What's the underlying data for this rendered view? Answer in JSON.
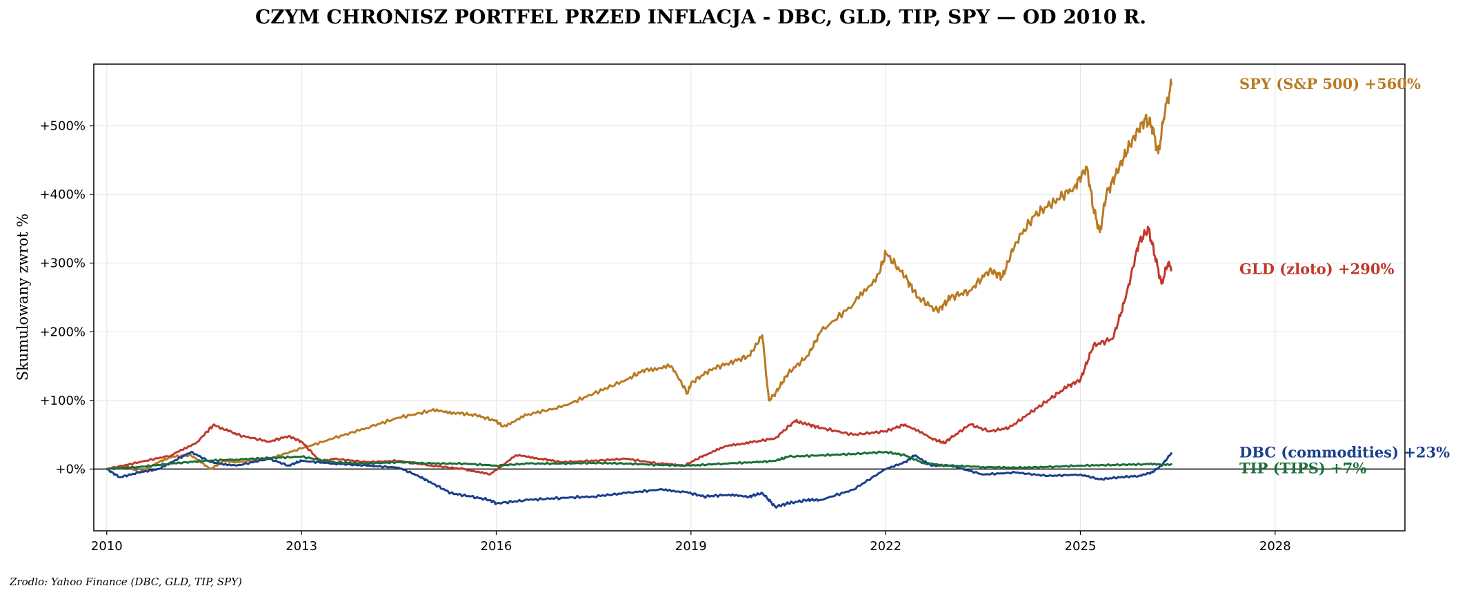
{
  "chart_data": {
    "type": "line",
    "title": "CZYM CHRONISZ PORTFEL PRZED INFLACJA - DBC, GLD, TIP, SPY — OD 2010 R.",
    "ylabel": "Skumulowany zwrot %",
    "xlabel": "",
    "xlim": [
      2009.8,
      2030.0
    ],
    "ylim": [
      -90,
      590
    ],
    "grid": true,
    "x_ticks": [
      2010,
      2013,
      2016,
      2019,
      2022,
      2025,
      2028
    ],
    "x_tick_labels": [
      "2010",
      "2013",
      "2016",
      "2019",
      "2022",
      "2025",
      "2028"
    ],
    "y_ticks": [
      0,
      100,
      200,
      300,
      400,
      500
    ],
    "y_tick_labels": [
      "+0%",
      "+100%",
      "+200%",
      "+300%",
      "+400%",
      "+500%"
    ],
    "series": [
      {
        "name": "SPY (S&P 500)",
        "end_label": "SPY (S&P 500)  +560%",
        "color": "#b87a22",
        "x": [
          2010.0,
          2010.3,
          2010.5,
          2010.8,
          2011.0,
          2011.3,
          2011.6,
          2011.8,
          2012.0,
          2012.5,
          2013.0,
          2013.5,
          2014.0,
          2014.5,
          2015.0,
          2015.4,
          2015.7,
          2016.0,
          2016.1,
          2016.5,
          2017.0,
          2017.5,
          2018.0,
          2018.3,
          2018.7,
          2018.95,
          2019.0,
          2019.3,
          2019.6,
          2019.9,
          2020.1,
          2020.2,
          2020.3,
          2020.5,
          2020.8,
          2021.0,
          2021.5,
          2021.9,
          2022.0,
          2022.3,
          2022.5,
          2022.8,
          2023.0,
          2023.3,
          2023.6,
          2023.8,
          2024.0,
          2024.3,
          2024.6,
          2024.9,
          2025.1,
          2025.2,
          2025.3,
          2025.4,
          2025.6,
          2025.8,
          2026.0,
          2026.1,
          2026.2,
          2026.3,
          2026.4
        ],
        "y": [
          0,
          5,
          -5,
          10,
          18,
          20,
          0,
          12,
          10,
          15,
          30,
          45,
          60,
          75,
          85,
          82,
          78,
          70,
          62,
          80,
          90,
          110,
          130,
          145,
          150,
          110,
          125,
          145,
          155,
          165,
          195,
          100,
          110,
          140,
          165,
          200,
          240,
          285,
          315,
          280,
          250,
          230,
          250,
          260,
          290,
          280,
          330,
          370,
          390,
          410,
          440,
          380,
          345,
          400,
          440,
          480,
          510,
          500,
          460,
          520,
          560
        ]
      },
      {
        "name": "GLD (zloto)",
        "end_label": "GLD (zloto)  +290%",
        "color": "#c0392b",
        "x": [
          2010.0,
          2010.5,
          2011.0,
          2011.4,
          2011.65,
          2012.0,
          2012.5,
          2012.8,
          2013.0,
          2013.3,
          2013.5,
          2014.0,
          2014.5,
          2015.0,
          2015.5,
          2015.9,
          2016.3,
          2016.7,
          2017.0,
          2017.5,
          2018.0,
          2018.5,
          2018.9,
          2019.2,
          2019.6,
          2020.0,
          2020.3,
          2020.6,
          2020.8,
          2021.0,
          2021.5,
          2022.0,
          2022.3,
          2022.7,
          2022.9,
          2023.0,
          2023.3,
          2023.6,
          2023.9,
          2024.2,
          2024.5,
          2024.8,
          2025.0,
          2025.2,
          2025.5,
          2025.7,
          2025.9,
          2026.05,
          2026.15,
          2026.25,
          2026.35,
          2026.4
        ],
        "y": [
          0,
          10,
          20,
          40,
          65,
          50,
          40,
          48,
          40,
          10,
          15,
          10,
          12,
          5,
          0,
          -8,
          20,
          15,
          10,
          12,
          15,
          8,
          5,
          20,
          35,
          40,
          45,
          70,
          65,
          60,
          50,
          55,
          65,
          45,
          38,
          45,
          65,
          55,
          60,
          80,
          100,
          120,
          130,
          180,
          190,
          250,
          330,
          350,
          310,
          270,
          300,
          290
        ]
      },
      {
        "name": "DBC (commodities)",
        "end_label": "DBC (commodities)  +23%",
        "color": "#1a3f8f",
        "x": [
          2010.0,
          2010.2,
          2010.5,
          2010.8,
          2011.0,
          2011.3,
          2011.6,
          2012.0,
          2012.5,
          2012.8,
          2013.0,
          2013.5,
          2014.0,
          2014.5,
          2014.8,
          2015.0,
          2015.3,
          2015.6,
          2015.9,
          2016.0,
          2016.5,
          2017.0,
          2017.5,
          2018.0,
          2018.5,
          2018.9,
          2019.2,
          2019.5,
          2019.9,
          2020.1,
          2020.3,
          2020.5,
          2020.8,
          2021.0,
          2021.5,
          2022.0,
          2022.3,
          2022.45,
          2022.7,
          2023.0,
          2023.5,
          2024.0,
          2024.5,
          2025.0,
          2025.3,
          2025.6,
          2025.9,
          2026.1,
          2026.25,
          2026.4
        ],
        "y": [
          0,
          -12,
          -5,
          0,
          10,
          25,
          10,
          5,
          15,
          5,
          12,
          8,
          5,
          2,
          -10,
          -20,
          -35,
          -40,
          -45,
          -50,
          -45,
          -42,
          -40,
          -35,
          -30,
          -33,
          -40,
          -38,
          -40,
          -35,
          -55,
          -50,
          -45,
          -45,
          -30,
          0,
          10,
          20,
          5,
          5,
          -8,
          -5,
          -10,
          -8,
          -15,
          -12,
          -10,
          -5,
          5,
          23
        ]
      },
      {
        "name": "TIP (TIPS)",
        "end_label": "TIP (TIPS)  +7%",
        "color": "#1a7038",
        "x": [
          2010.0,
          2010.5,
          2011.0,
          2011.5,
          2012.0,
          2012.5,
          2013.0,
          2013.5,
          2014.0,
          2014.5,
          2015.0,
          2015.5,
          2016.0,
          2016.5,
          2017.0,
          2017.5,
          2018.0,
          2018.5,
          2019.0,
          2019.5,
          2020.0,
          2020.3,
          2020.5,
          2021.0,
          2021.5,
          2022.0,
          2022.3,
          2022.6,
          2023.0,
          2023.5,
          2024.0,
          2024.5,
          2025.0,
          2025.5,
          2026.0,
          2026.4
        ],
        "y": [
          0,
          3,
          8,
          12,
          14,
          16,
          18,
          10,
          8,
          10,
          8,
          8,
          5,
          8,
          8,
          9,
          8,
          6,
          5,
          8,
          10,
          12,
          18,
          20,
          22,
          25,
          20,
          8,
          5,
          3,
          2,
          3,
          5,
          6,
          7,
          7
        ]
      }
    ]
  },
  "source_note": "Zrodlo: Yahoo Finance (DBC, GLD, TIP, SPY)"
}
